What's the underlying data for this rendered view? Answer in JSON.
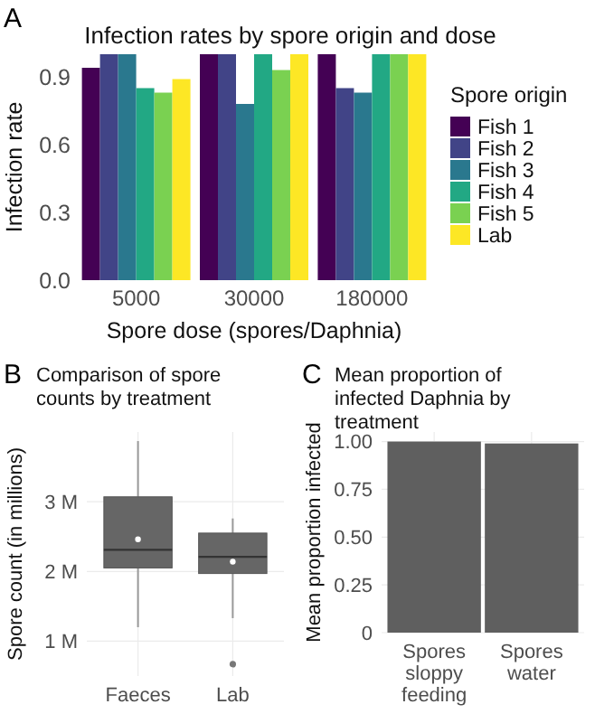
{
  "chart_data": [
    {
      "type": "bar",
      "title": "Infection rates by spore origin and dose",
      "xlabel": "Spore dose (spores/Daphnia)",
      "ylabel": "Infection rate",
      "legend_title": "Spore origin",
      "legend": "right",
      "annotations": [
        "A"
      ],
      "categories": [
        "5000",
        "30000",
        "180000"
      ],
      "series": [
        {
          "name": "Fish 1",
          "color": "#440154",
          "values": [
            0.94,
            1.0,
            1.0
          ]
        },
        {
          "name": "Fish 2",
          "color": "#414487",
          "values": [
            1.0,
            1.0,
            0.85
          ]
        },
        {
          "name": "Fish 3",
          "color": "#2a788e",
          "values": [
            1.0,
            0.78,
            0.83
          ]
        },
        {
          "name": "Fish 4",
          "color": "#22a884",
          "values": [
            0.85,
            1.0,
            1.0
          ]
        },
        {
          "name": "Fish 5",
          "color": "#7ad151",
          "values": [
            0.83,
            0.93,
            1.0
          ]
        },
        {
          "name": "Lab",
          "color": "#fde725",
          "values": [
            0.89,
            1.0,
            1.0
          ]
        }
      ],
      "ylim": [
        0,
        1
      ],
      "yticks": [
        {
          "value": 0,
          "label": "0.0"
        },
        0.3,
        0.6,
        0.9
      ]
    },
    {
      "type": "box",
      "title": "Comparison of spore counts by treatment",
      "ylabel": "Spore count (in millions)",
      "annotations": [
        "B"
      ],
      "grid": true,
      "color": "#666666",
      "categories": [
        "Faeces",
        "Lab"
      ],
      "boxes": [
        {
          "low": 1.2,
          "q1": 2.05,
          "median": 2.31,
          "q3": 3.07,
          "high": 3.87,
          "mean": 2.46
        },
        {
          "low": 1.33,
          "q1": 1.97,
          "median": 2.21,
          "q3": 2.55,
          "high": 2.76,
          "mean": 2.14,
          "outliers": [
            0.67
          ]
        }
      ],
      "ylim": [
        0.5,
        4
      ],
      "yticks": [
        {
          "value": 1,
          "label": "1 M"
        },
        {
          "value": 2,
          "label": "2 M"
        },
        {
          "value": 3,
          "label": "3 M"
        }
      ]
    },
    {
      "type": "bar",
      "title": "Mean proportion of infected Daphnia by treatment",
      "ylabel": "Mean proportion infected",
      "annotations": [
        "C"
      ],
      "grid": true,
      "color": "#5f5f5f",
      "categories": [
        "Spores sloppy feeding",
        "Spores water"
      ],
      "values": [
        1.0,
        0.99
      ],
      "ylim": [
        0,
        1.05
      ],
      "yticks": [
        0,
        {
          "value": 0.25,
          "label": "0.25"
        },
        {
          "value": 0.5,
          "label": "0.50"
        },
        {
          "value": 0.75,
          "label": "0.75"
        },
        {
          "value": 1,
          "label": "1.00"
        }
      ]
    }
  ]
}
